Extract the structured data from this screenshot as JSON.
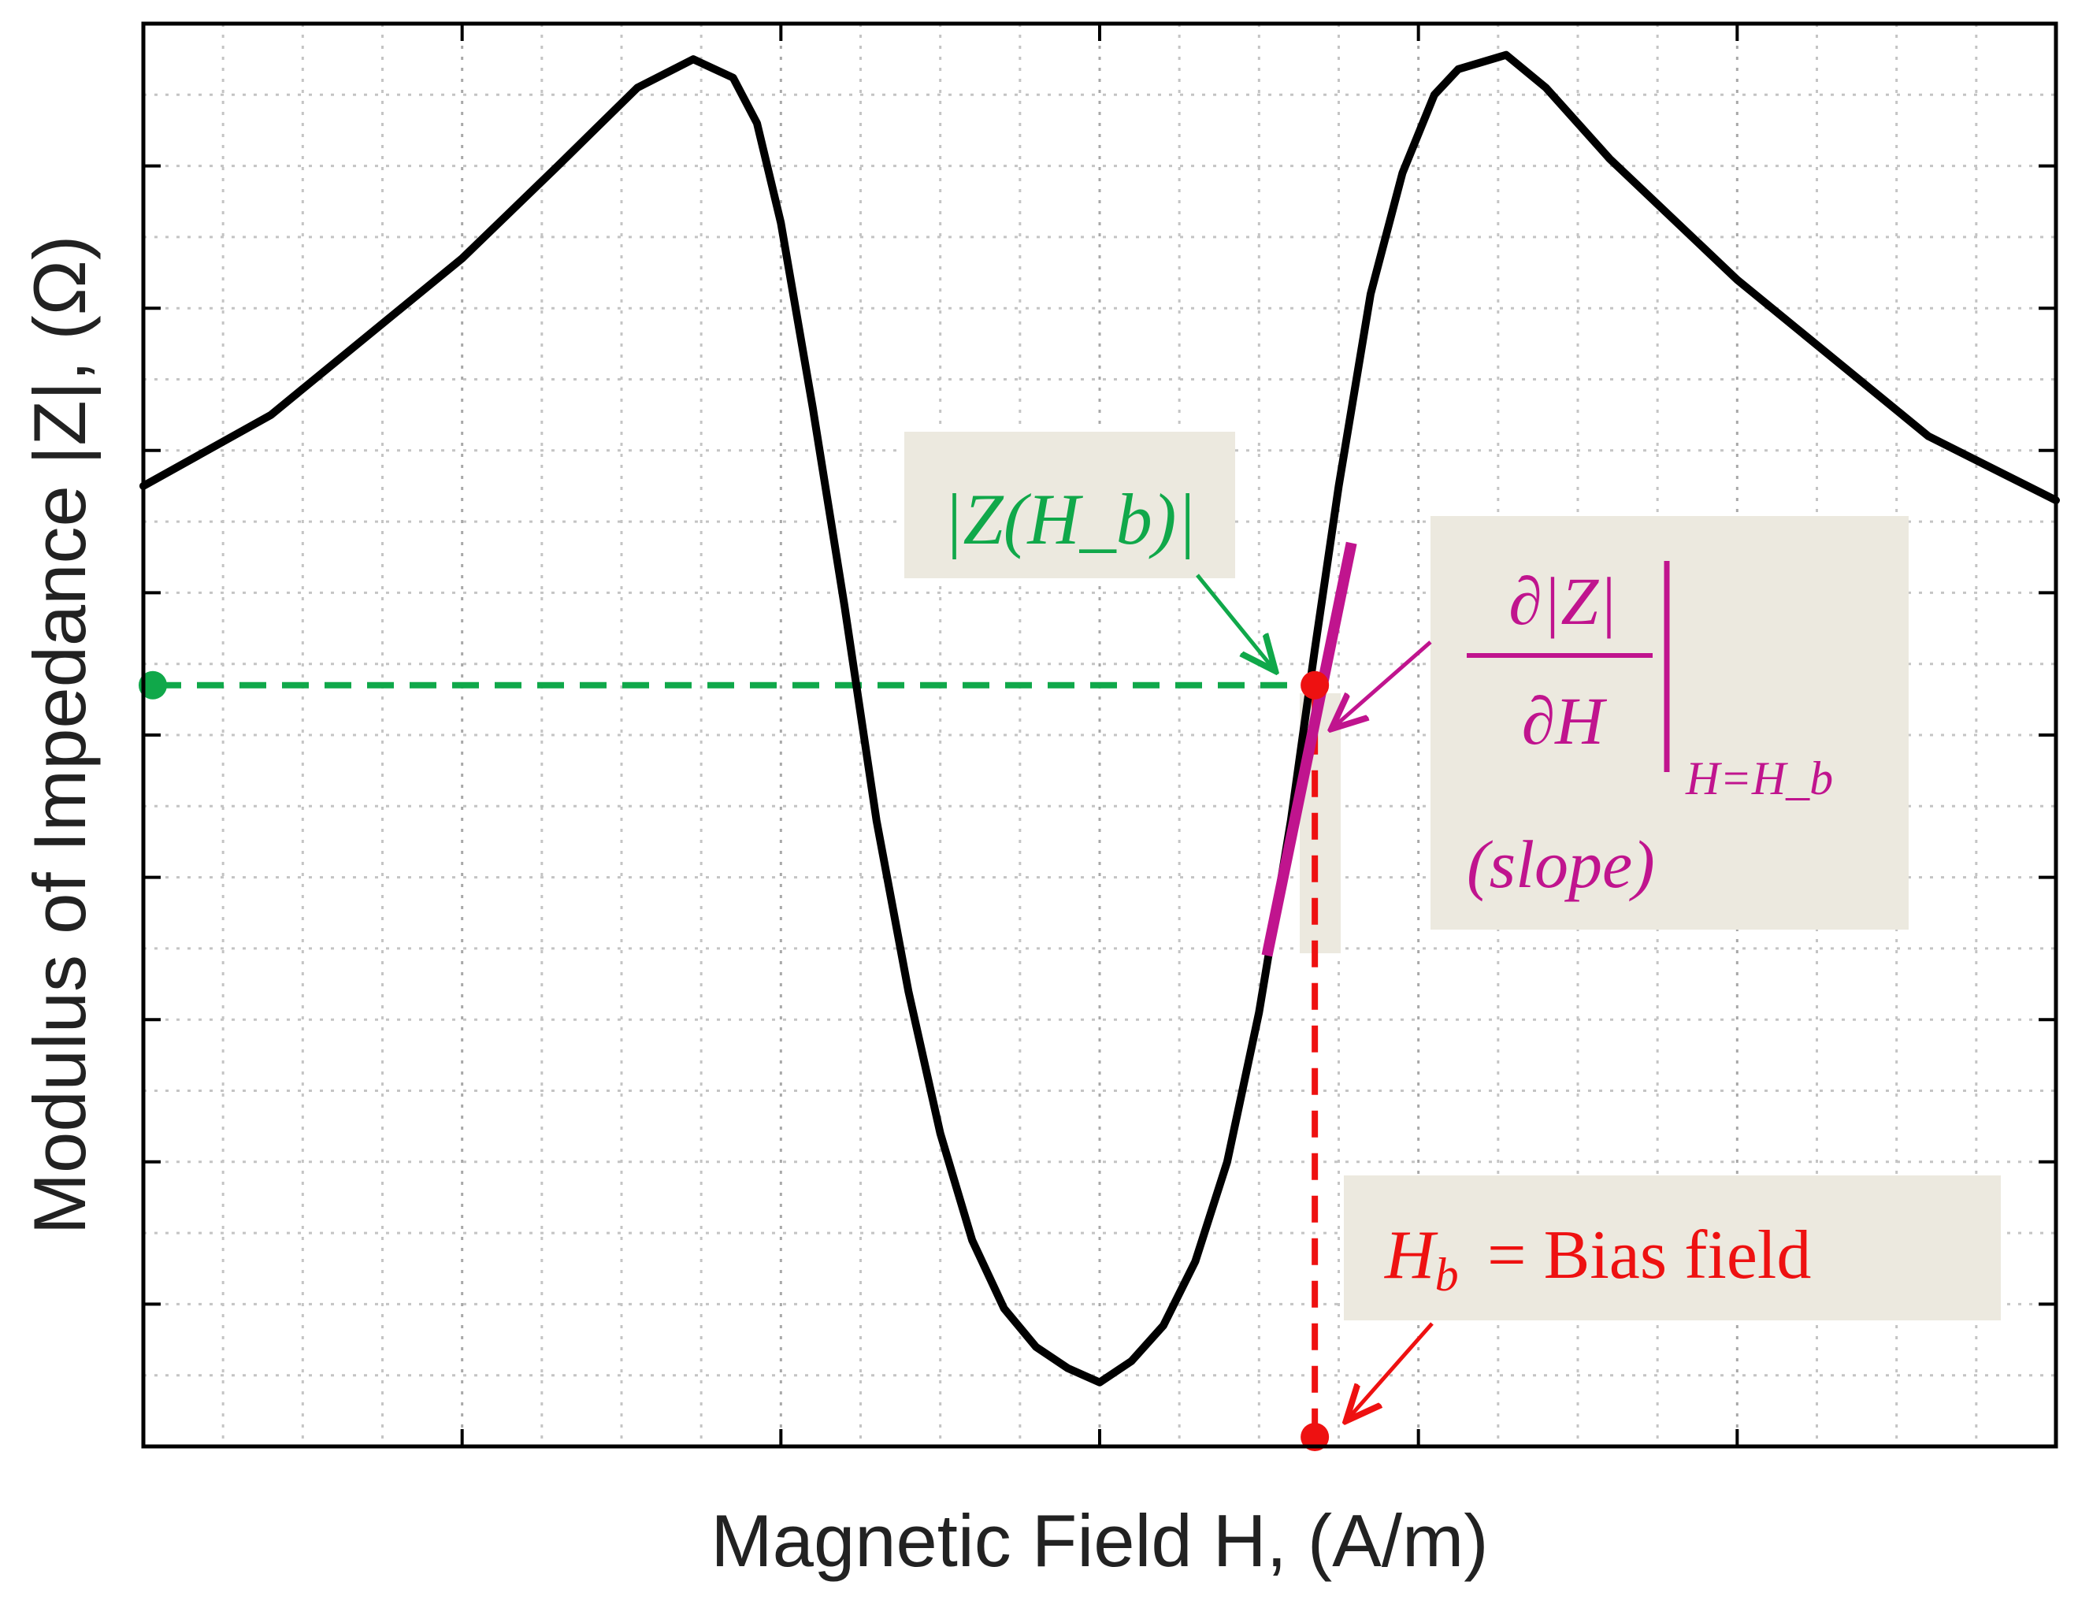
{
  "chart_data": {
    "type": "line",
    "xlabel": "Magnetic Field H, (A/m)",
    "ylabel": "Modulus of Impedance |Z|, (Ω)",
    "xlim": [
      -6,
      6
    ],
    "ylim": [
      0,
      10
    ],
    "xticks": [
      -4,
      -2,
      0,
      2,
      4
    ],
    "yticks": [
      1,
      2,
      3,
      4,
      5,
      6,
      7,
      8,
      9
    ],
    "tick_labels_shown": false,
    "grid": true,
    "series": [
      {
        "color": "#000000",
        "points": [
          [
            -6.0,
            6.75
          ],
          [
            -5.2,
            7.25
          ],
          [
            -4.0,
            8.35
          ],
          [
            -3.4,
            9.0
          ],
          [
            -2.9,
            9.55
          ],
          [
            -2.55,
            9.75
          ],
          [
            -2.3,
            9.62
          ],
          [
            -2.15,
            9.3
          ],
          [
            -2.0,
            8.6
          ],
          [
            -1.8,
            7.3
          ],
          [
            -1.6,
            5.9
          ],
          [
            -1.4,
            4.4
          ],
          [
            -1.2,
            3.2
          ],
          [
            -1.0,
            2.2
          ],
          [
            -0.8,
            1.45
          ],
          [
            -0.6,
            0.97
          ],
          [
            -0.4,
            0.7
          ],
          [
            -0.2,
            0.55
          ],
          [
            0.0,
            0.45
          ],
          [
            0.2,
            0.6
          ],
          [
            0.4,
            0.85
          ],
          [
            0.6,
            1.3
          ],
          [
            0.8,
            2.0
          ],
          [
            1.0,
            3.05
          ],
          [
            1.2,
            4.4
          ],
          [
            1.35,
            5.6
          ],
          [
            1.5,
            6.75
          ],
          [
            1.7,
            8.1
          ],
          [
            1.9,
            8.95
          ],
          [
            2.1,
            9.5
          ],
          [
            2.25,
            9.68
          ],
          [
            2.55,
            9.78
          ],
          [
            2.8,
            9.55
          ],
          [
            3.2,
            9.05
          ],
          [
            4.0,
            8.2
          ],
          [
            5.2,
            7.1
          ],
          [
            6.0,
            6.65
          ]
        ]
      }
    ],
    "operating_point": {
      "H": 1.35,
      "Z": 5.35
    },
    "tangent": {
      "H": [
        1.05,
        1.58
      ],
      "Z": [
        3.45,
        6.35
      ]
    },
    "annotations": {
      "z_label": "|Z(H_b)|",
      "slope_numerator": "∂|Z|",
      "slope_denominator": "∂H",
      "slope_subscript": "H=H_b",
      "slope_note": "(slope)",
      "bias_label_right": "= Bias field"
    },
    "colors": {
      "curve": "#000000",
      "z_guide": "#10a84a",
      "slope": "#c0148e",
      "bias": "#ee1111",
      "label_box": "#ece9df"
    }
  }
}
